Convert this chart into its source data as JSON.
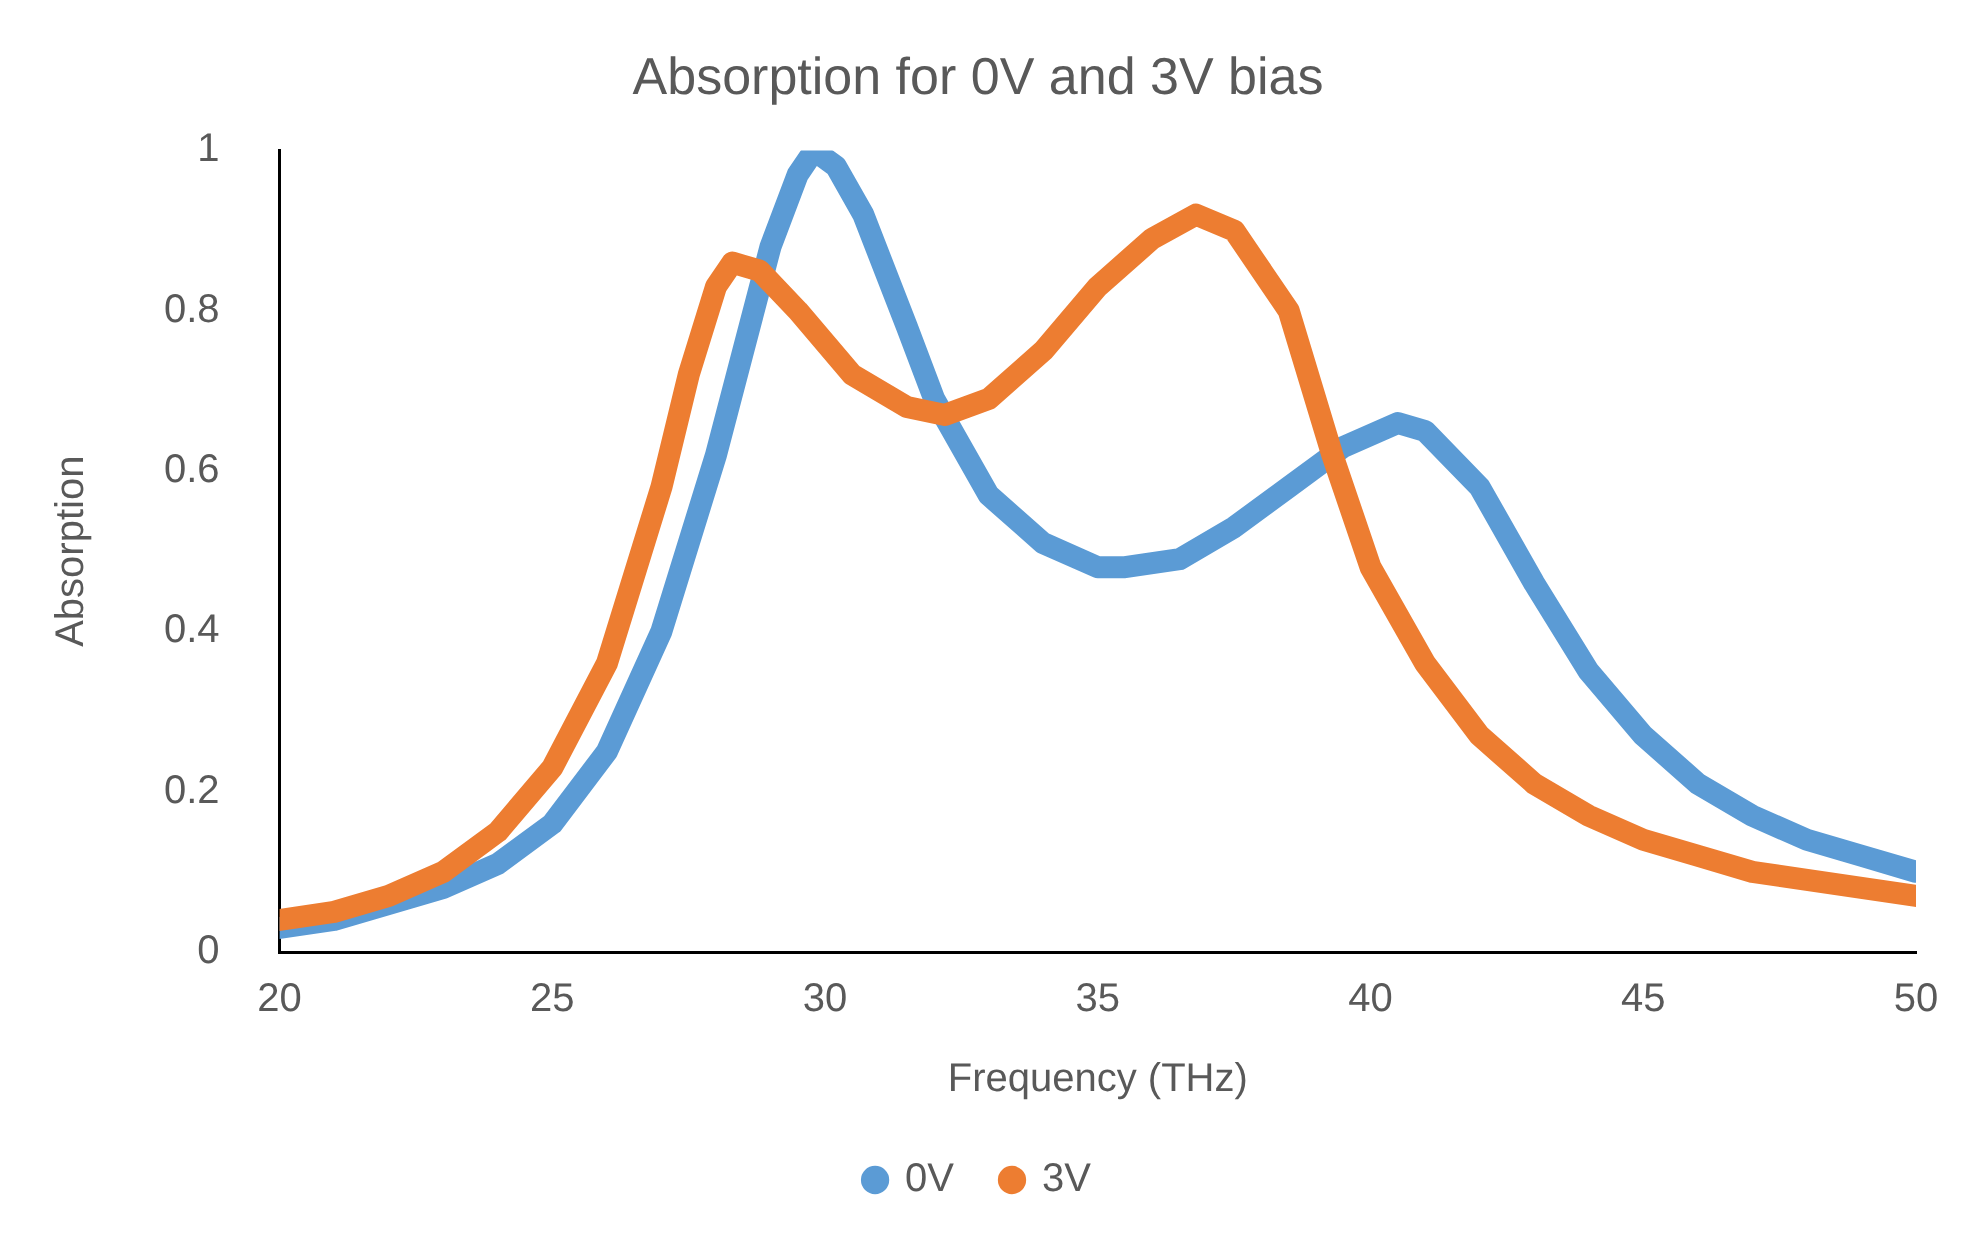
{
  "chart_data": {
    "type": "line",
    "title": "Absorption for 0V and 3V bias",
    "xlabel": "Frequency (THz)",
    "ylabel": "Absorption",
    "xlim": [
      20,
      50
    ],
    "xticks": [
      20,
      25,
      30,
      35,
      40,
      45,
      50
    ],
    "ylim": [
      0,
      1
    ],
    "yticks": [
      0,
      0.2,
      0.4,
      0.6,
      0.8,
      1
    ],
    "grid": false,
    "legend": "bottom",
    "marker": "none",
    "line_style": "solid",
    "series": [
      {
        "name": "0V",
        "color": "#5b9bd5",
        "x": [
          20,
          21,
          22,
          23,
          24,
          25,
          26,
          27,
          28,
          28.5,
          29,
          29.5,
          29.8,
          30.2,
          30.7,
          31.5,
          32,
          33,
          34,
          35,
          35.5,
          36.5,
          37.5,
          38.5,
          39.5,
          40.5,
          41,
          42,
          43,
          44,
          45,
          46,
          47,
          48,
          49,
          50
        ],
        "values": [
          0.03,
          0.04,
          0.06,
          0.08,
          0.11,
          0.16,
          0.25,
          0.4,
          0.62,
          0.75,
          0.88,
          0.97,
          1,
          0.98,
          0.92,
          0.78,
          0.69,
          0.57,
          0.51,
          0.48,
          0.48,
          0.49,
          0.53,
          0.58,
          0.63,
          0.66,
          0.65,
          0.58,
          0.46,
          0.35,
          0.27,
          0.21,
          0.17,
          0.14,
          0.12,
          0.1
        ]
      },
      {
        "name": "3V",
        "color": "#ed7d31",
        "x": [
          20,
          21,
          22,
          23,
          24,
          25,
          26,
          27,
          27.5,
          28,
          28.3,
          28.8,
          29.5,
          30.5,
          31.5,
          32.2,
          33,
          34,
          35,
          36,
          36.8,
          37.5,
          38.5,
          39.3,
          40,
          41,
          42,
          43,
          44,
          45,
          46,
          47,
          48,
          49,
          50
        ],
        "values": [
          0.04,
          0.05,
          0.07,
          0.1,
          0.15,
          0.23,
          0.36,
          0.58,
          0.72,
          0.83,
          0.86,
          0.85,
          0.8,
          0.72,
          0.68,
          0.67,
          0.69,
          0.75,
          0.83,
          0.89,
          0.92,
          0.9,
          0.8,
          0.62,
          0.48,
          0.36,
          0.27,
          0.21,
          0.17,
          0.14,
          0.12,
          0.1,
          0.09,
          0.08,
          0.07
        ]
      }
    ]
  }
}
